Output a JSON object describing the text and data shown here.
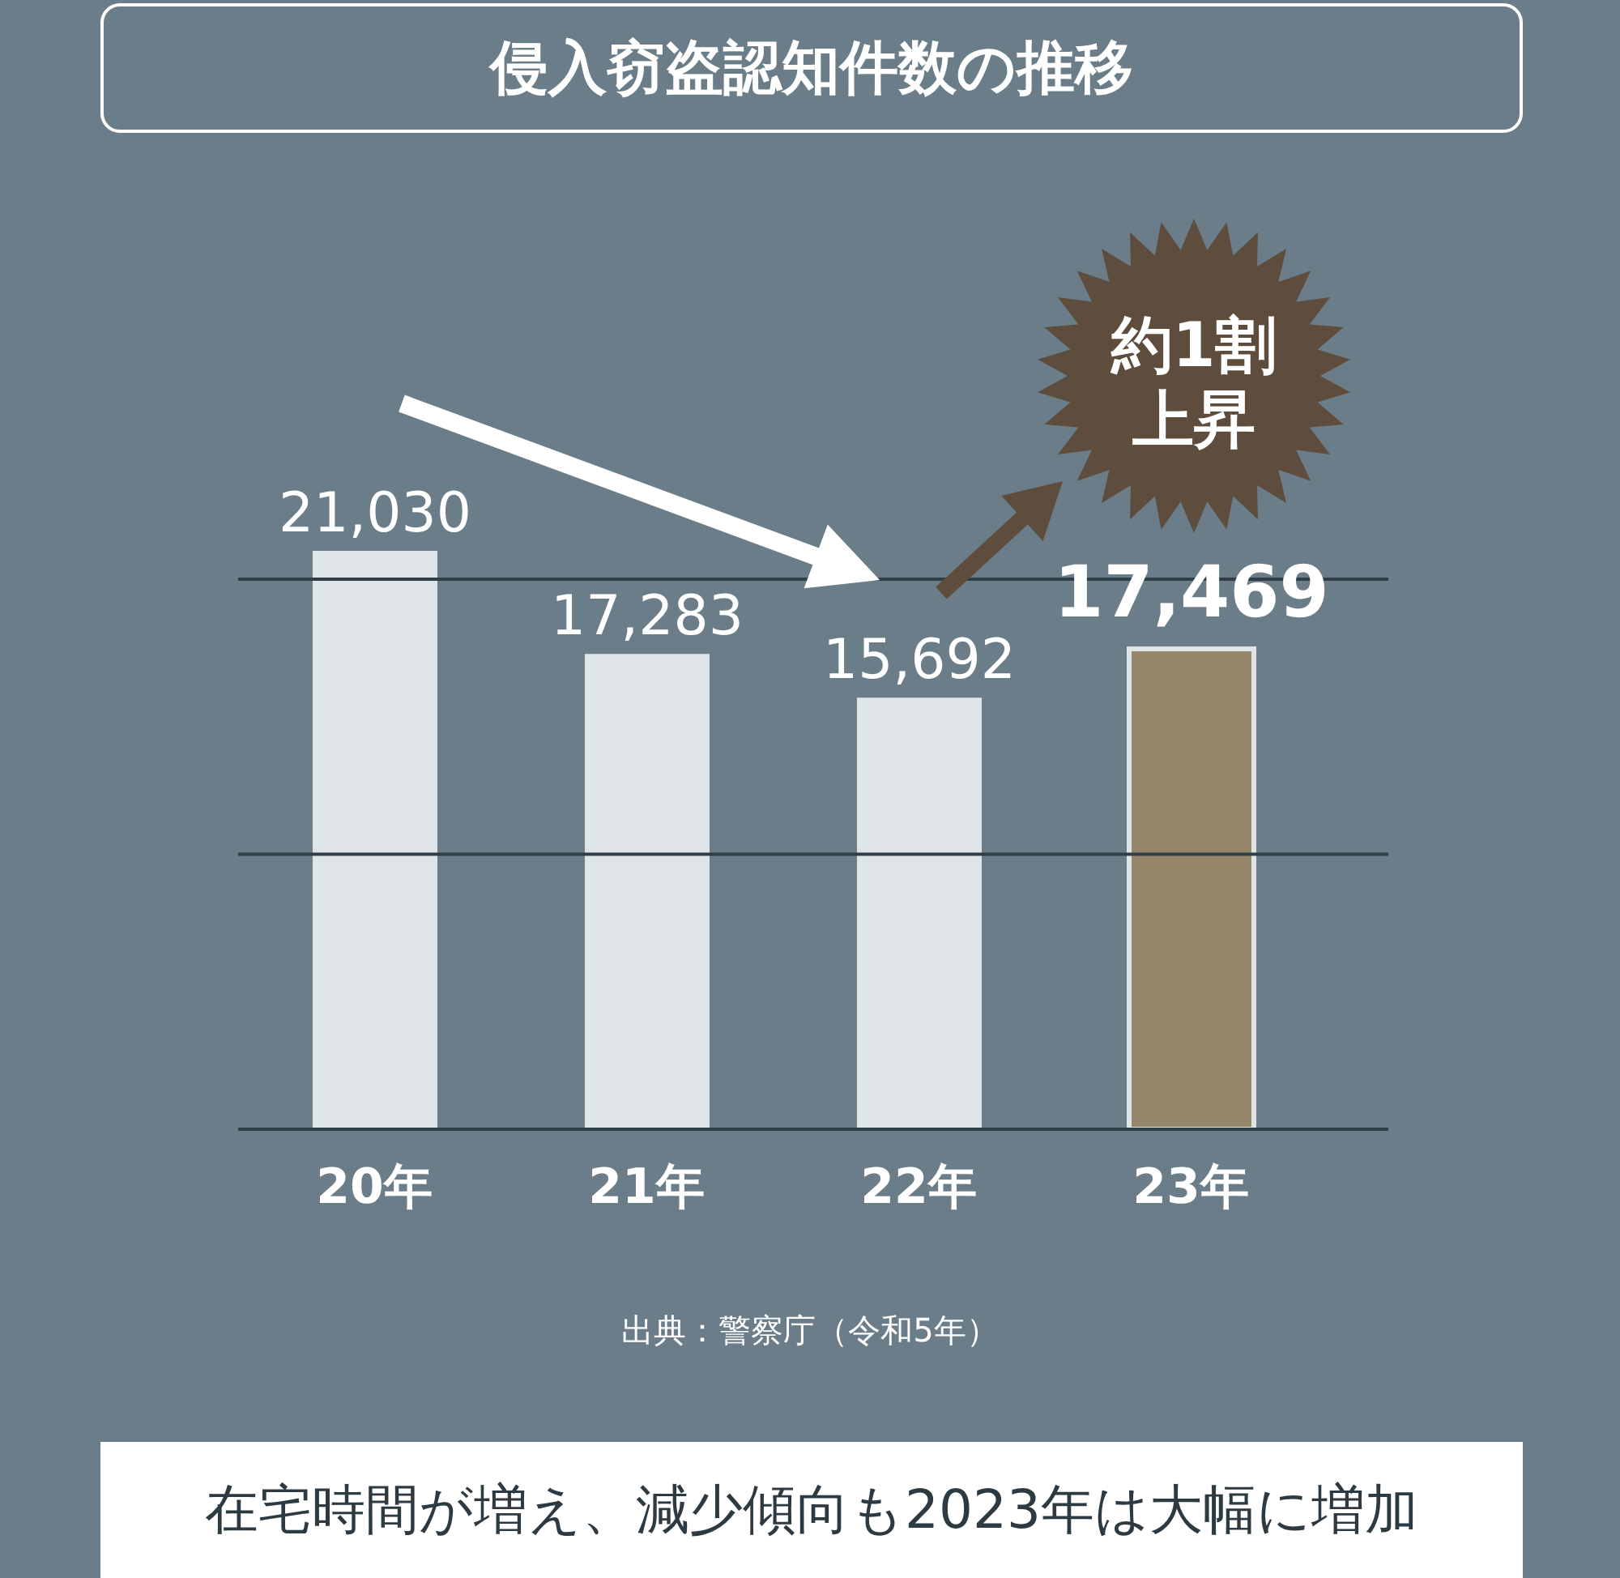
{
  "chart_data": {
    "type": "bar",
    "title": "侵入窃盗認知件数の推移",
    "categories": [
      "20年",
      "21年",
      "22年",
      "23年"
    ],
    "values": [
      21030,
      17283,
      15692,
      17469
    ],
    "colors": [
      "#dfe4e6",
      "#dfe4e6",
      "#dfe4e6",
      "#96866a"
    ],
    "value_labels": [
      "21,030",
      "17,283",
      "15,692",
      "17,469"
    ],
    "tick_labels": "x",
    "ref_lines": [
      {
        "axis": "y",
        "value": 10000,
        "color": "#2f3e47"
      },
      {
        "axis": "y",
        "value": 20000,
        "color": "#2f3e47"
      }
    ],
    "annotations": [
      "約1割上昇",
      "出典：警察庁（令和5年）",
      "在宅時間が増え、減少傾向も2023年は大幅に増加"
    ]
  }
}
